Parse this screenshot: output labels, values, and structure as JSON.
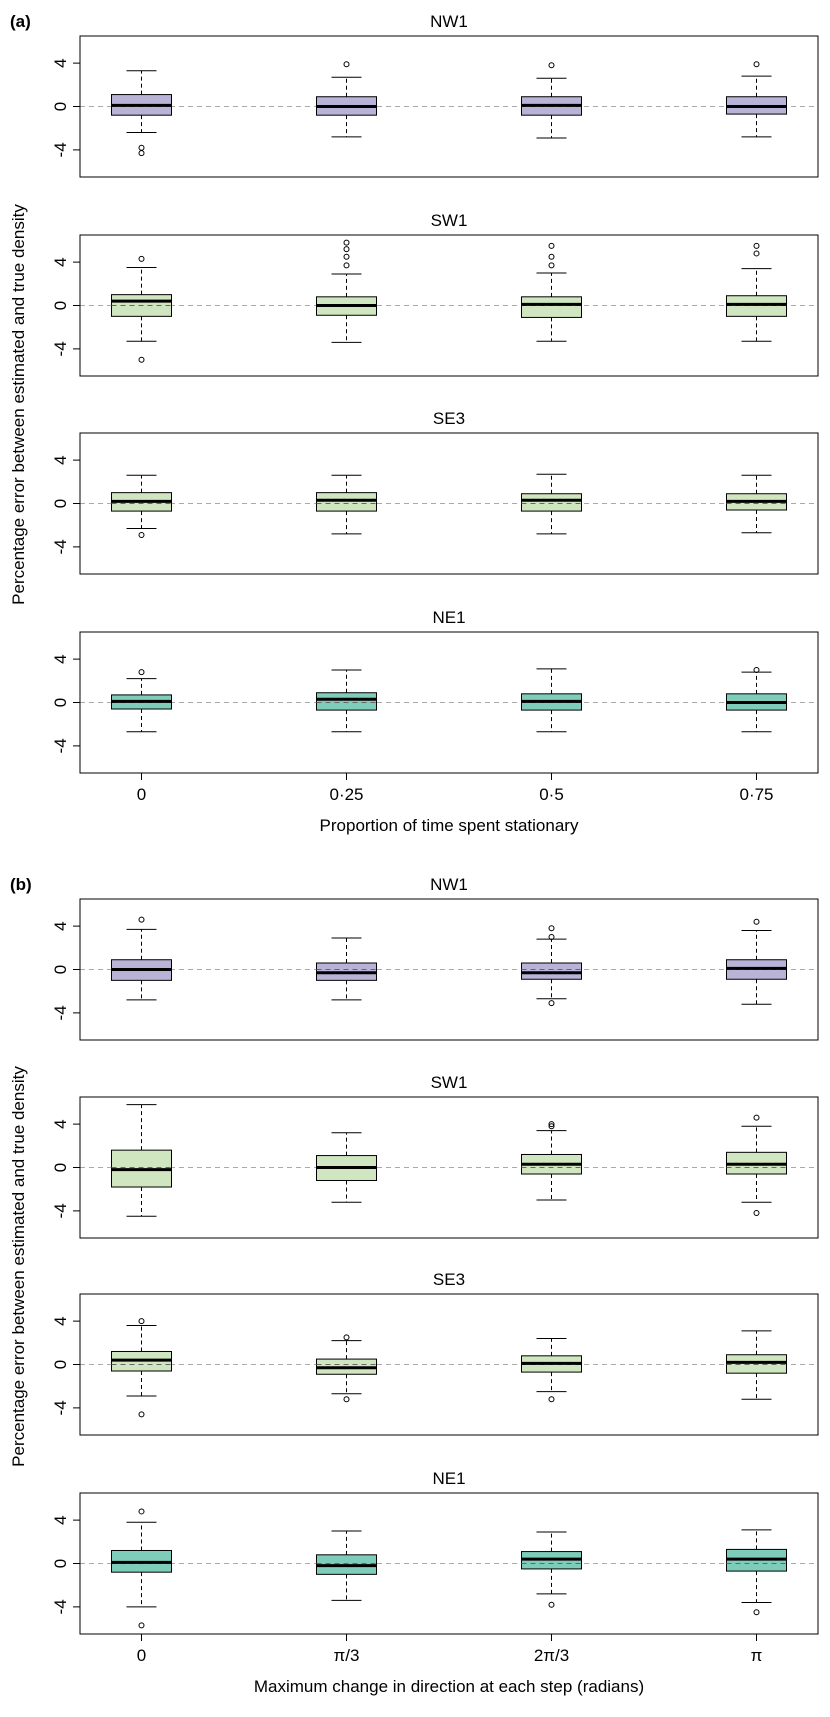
{
  "chart_data": [
    {
      "type": "box",
      "panel_label": "(a)",
      "title": "NW1",
      "color": "#b9b3d8",
      "ylim": [
        -6.5,
        6.5
      ],
      "yticks": [
        -4,
        0,
        4
      ],
      "hline": 0,
      "boxes": [
        {
          "whisker_low": -2.4,
          "q1": -0.8,
          "median": 0.1,
          "q3": 1.1,
          "whisker_high": 3.3,
          "outliers": [
            -3.8,
            -4.3
          ]
        },
        {
          "whisker_low": -2.8,
          "q1": -0.8,
          "median": 0.0,
          "q3": 0.9,
          "whisker_high": 2.7,
          "outliers": [
            3.9
          ]
        },
        {
          "whisker_low": -2.9,
          "q1": -0.8,
          "median": 0.1,
          "q3": 0.9,
          "whisker_high": 2.6,
          "outliers": [
            3.8
          ]
        },
        {
          "whisker_low": -2.8,
          "q1": -0.7,
          "median": 0.0,
          "q3": 0.9,
          "whisker_high": 2.8,
          "outliers": [
            3.9
          ]
        }
      ]
    },
    {
      "type": "box",
      "title": "SW1",
      "color": "#cfe6c0",
      "ylim": [
        -6.5,
        6.5
      ],
      "yticks": [
        -4,
        0,
        4
      ],
      "hline": 0,
      "boxes": [
        {
          "whisker_low": -3.3,
          "q1": -1.0,
          "median": 0.4,
          "q3": 1.0,
          "whisker_high": 3.5,
          "outliers": [
            4.3,
            -5.0
          ]
        },
        {
          "whisker_low": -3.4,
          "q1": -0.9,
          "median": 0.0,
          "q3": 0.8,
          "whisker_high": 2.9,
          "outliers": [
            5.8,
            5.2,
            4.5,
            3.7
          ]
        },
        {
          "whisker_low": -3.3,
          "q1": -1.1,
          "median": 0.1,
          "q3": 0.8,
          "whisker_high": 3.0,
          "outliers": [
            5.5,
            4.5,
            3.7
          ]
        },
        {
          "whisker_low": -3.3,
          "q1": -1.0,
          "median": 0.1,
          "q3": 0.9,
          "whisker_high": 3.4,
          "outliers": [
            5.5,
            4.8
          ]
        }
      ]
    },
    {
      "type": "box",
      "title": "SE3",
      "color": "#cfe6c0",
      "ylim": [
        -6.5,
        6.5
      ],
      "yticks": [
        -4,
        0,
        4
      ],
      "hline": 0,
      "boxes": [
        {
          "whisker_low": -2.3,
          "q1": -0.7,
          "median": 0.2,
          "q3": 1.0,
          "whisker_high": 2.6,
          "outliers": [
            -2.9
          ]
        },
        {
          "whisker_low": -2.8,
          "q1": -0.7,
          "median": 0.3,
          "q3": 1.0,
          "whisker_high": 2.6,
          "outliers": []
        },
        {
          "whisker_low": -2.8,
          "q1": -0.7,
          "median": 0.3,
          "q3": 0.9,
          "whisker_high": 2.7,
          "outliers": []
        },
        {
          "whisker_low": -2.7,
          "q1": -0.6,
          "median": 0.2,
          "q3": 0.9,
          "whisker_high": 2.6,
          "outliers": []
        }
      ]
    },
    {
      "type": "box",
      "title": "NE1",
      "color": "#7ecdbb",
      "ylim": [
        -6.5,
        6.5
      ],
      "yticks": [
        -4,
        0,
        4
      ],
      "hline": 0,
      "categories": [
        "0",
        "0·25",
        "0·5",
        "0·75"
      ],
      "xlabel": "Proportion of time spent stationary",
      "boxes": [
        {
          "whisker_low": -2.7,
          "q1": -0.6,
          "median": 0.1,
          "q3": 0.7,
          "whisker_high": 2.2,
          "outliers": [
            2.8
          ]
        },
        {
          "whisker_low": -2.7,
          "q1": -0.7,
          "median": 0.3,
          "q3": 0.9,
          "whisker_high": 3.0,
          "outliers": []
        },
        {
          "whisker_low": -2.7,
          "q1": -0.7,
          "median": 0.1,
          "q3": 0.8,
          "whisker_high": 3.1,
          "outliers": []
        },
        {
          "whisker_low": -2.7,
          "q1": -0.7,
          "median": 0.0,
          "q3": 0.8,
          "whisker_high": 2.8,
          "outliers": [
            3.0
          ]
        }
      ]
    },
    {
      "type": "box",
      "panel_label": "(b)",
      "title": "NW1",
      "color": "#b9b3d8",
      "ylim": [
        -6.5,
        6.5
      ],
      "yticks": [
        -4,
        0,
        4
      ],
      "hline": 0,
      "boxes": [
        {
          "whisker_low": -2.8,
          "q1": -1.0,
          "median": 0.0,
          "q3": 0.9,
          "whisker_high": 3.7,
          "outliers": [
            4.6
          ]
        },
        {
          "whisker_low": -2.8,
          "q1": -1.0,
          "median": -0.3,
          "q3": 0.6,
          "whisker_high": 2.9,
          "outliers": []
        },
        {
          "whisker_low": -2.7,
          "q1": -0.9,
          "median": -0.3,
          "q3": 0.6,
          "whisker_high": 2.8,
          "outliers": [
            3.8,
            3.0,
            -3.1
          ]
        },
        {
          "whisker_low": -3.2,
          "q1": -0.9,
          "median": 0.1,
          "q3": 0.9,
          "whisker_high": 3.6,
          "outliers": [
            4.4
          ]
        }
      ]
    },
    {
      "type": "box",
      "title": "SW1",
      "color": "#cfe6c0",
      "ylim": [
        -6.5,
        6.5
      ],
      "yticks": [
        -4,
        0,
        4
      ],
      "hline": 0,
      "boxes": [
        {
          "whisker_low": -4.5,
          "q1": -1.8,
          "median": -0.2,
          "q3": 1.6,
          "whisker_high": 5.8,
          "outliers": []
        },
        {
          "whisker_low": -3.2,
          "q1": -1.2,
          "median": 0.0,
          "q3": 1.1,
          "whisker_high": 3.2,
          "outliers": []
        },
        {
          "whisker_low": -3.0,
          "q1": -0.6,
          "median": 0.3,
          "q3": 1.2,
          "whisker_high": 3.4,
          "outliers": [
            4.0,
            3.8
          ]
        },
        {
          "whisker_low": -3.2,
          "q1": -0.6,
          "median": 0.3,
          "q3": 1.4,
          "whisker_high": 3.8,
          "outliers": [
            4.6,
            -4.2
          ]
        }
      ]
    },
    {
      "type": "box",
      "title": "SE3",
      "color": "#cfe6c0",
      "ylim": [
        -6.5,
        6.5
      ],
      "yticks": [
        -4,
        0,
        4
      ],
      "hline": 0,
      "boxes": [
        {
          "whisker_low": -2.9,
          "q1": -0.6,
          "median": 0.4,
          "q3": 1.2,
          "whisker_high": 3.6,
          "outliers": [
            4.0,
            -4.6
          ]
        },
        {
          "whisker_low": -2.7,
          "q1": -0.9,
          "median": -0.3,
          "q3": 0.5,
          "whisker_high": 2.2,
          "outliers": [
            2.5,
            -3.2
          ]
        },
        {
          "whisker_low": -2.5,
          "q1": -0.7,
          "median": 0.1,
          "q3": 0.8,
          "whisker_high": 2.4,
          "outliers": [
            -3.2
          ]
        },
        {
          "whisker_low": -3.2,
          "q1": -0.8,
          "median": 0.2,
          "q3": 0.9,
          "whisker_high": 3.1,
          "outliers": []
        }
      ]
    },
    {
      "type": "box",
      "title": "NE1",
      "color": "#7ecdbb",
      "ylim": [
        -6.5,
        6.5
      ],
      "yticks": [
        -4,
        0,
        4
      ],
      "hline": 0,
      "categories": [
        "0",
        "π/3",
        "2π/3",
        "π"
      ],
      "xlabel": "Maximum change in direction at each step (radians)",
      "boxes": [
        {
          "whisker_low": -4.0,
          "q1": -0.8,
          "median": 0.1,
          "q3": 1.2,
          "whisker_high": 3.8,
          "outliers": [
            4.8,
            -5.7
          ]
        },
        {
          "whisker_low": -3.4,
          "q1": -1.0,
          "median": -0.2,
          "q3": 0.8,
          "whisker_high": 3.0,
          "outliers": []
        },
        {
          "whisker_low": -2.8,
          "q1": -0.5,
          "median": 0.4,
          "q3": 1.1,
          "whisker_high": 2.9,
          "outliers": [
            -3.8
          ]
        },
        {
          "whisker_low": -3.6,
          "q1": -0.7,
          "median": 0.4,
          "q3": 1.3,
          "whisker_high": 3.1,
          "outliers": [
            -4.5
          ]
        }
      ]
    }
  ],
  "y_label": "Percentage error between estimated and true density"
}
